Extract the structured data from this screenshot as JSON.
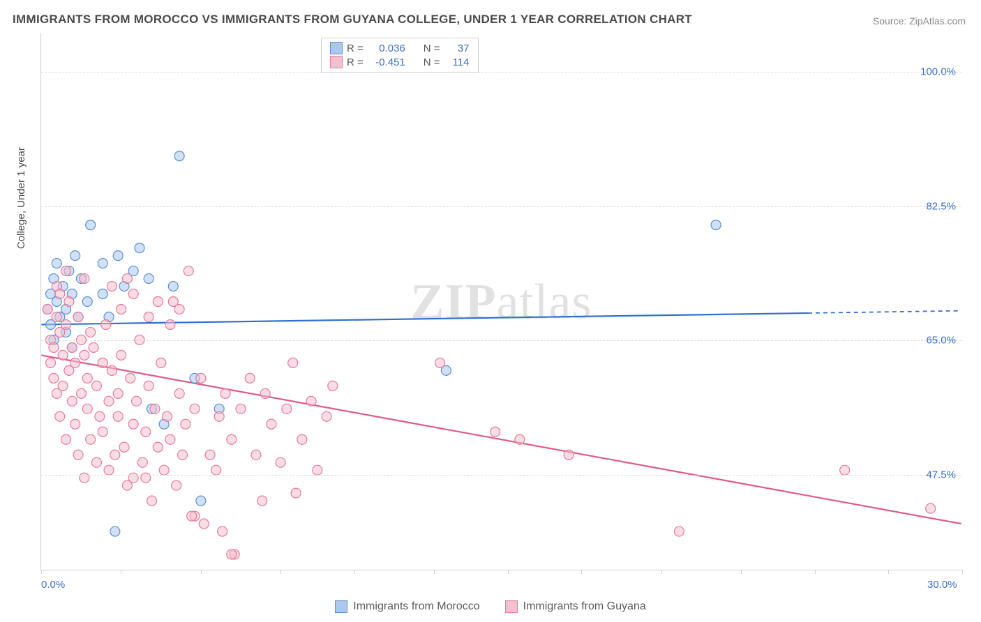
{
  "title": "IMMIGRANTS FROM MOROCCO VS IMMIGRANTS FROM GUYANA COLLEGE, UNDER 1 YEAR CORRELATION CHART",
  "source_label": "Source: ZipAtlas.com",
  "y_axis_title": "College, Under 1 year",
  "watermark": {
    "bold": "ZIP",
    "rest": "atlas"
  },
  "chart": {
    "type": "scatter-correlation",
    "background_color": "#ffffff",
    "grid_color": "#dcdcdc",
    "border_color": "#cfcfcf",
    "label_color": "#3b6fc9",
    "text_color": "#4a4a4a",
    "xlim": [
      0,
      30
    ],
    "ylim": [
      35,
      105
    ],
    "x_ticks": [
      0,
      2.6,
      5.2,
      7.8,
      10.2,
      12.8,
      15.2,
      17.6,
      20.2,
      22.8,
      25.2,
      27.6,
      30
    ],
    "x_tick_labels": {
      "0": "0.0%",
      "30": "30.0%"
    },
    "y_gridlines": [
      47.5,
      65.0,
      82.5,
      100.0
    ],
    "y_tick_labels": [
      "47.5%",
      "65.0%",
      "82.5%",
      "100.0%"
    ],
    "marker_radius": 7,
    "marker_opacity": 0.55,
    "line_width": 2.2,
    "series": [
      {
        "key": "morocco",
        "label": "Immigrants from Morocco",
        "color_fill": "#a9c8ec",
        "color_stroke": "#5a8fd6",
        "line_color": "#2f6fd0",
        "R": "0.036",
        "N": "37",
        "regression": {
          "x1": 0,
          "y1": 67.0,
          "x2": 25.0,
          "y2": 68.5,
          "extend_x": 30,
          "extend_y": 68.8
        },
        "points": [
          [
            0.2,
            69
          ],
          [
            0.3,
            71
          ],
          [
            0.3,
            67
          ],
          [
            0.4,
            73
          ],
          [
            0.4,
            65
          ],
          [
            0.5,
            70
          ],
          [
            0.5,
            75
          ],
          [
            0.6,
            68
          ],
          [
            0.7,
            72
          ],
          [
            0.8,
            66
          ],
          [
            0.8,
            69
          ],
          [
            0.9,
            74
          ],
          [
            1.0,
            71
          ],
          [
            1.0,
            64
          ],
          [
            1.1,
            76
          ],
          [
            1.2,
            68
          ],
          [
            1.3,
            73
          ],
          [
            1.5,
            70
          ],
          [
            1.6,
            80
          ],
          [
            2.0,
            75
          ],
          [
            2.0,
            71
          ],
          [
            2.2,
            68
          ],
          [
            2.5,
            76
          ],
          [
            2.7,
            72
          ],
          [
            3.0,
            74
          ],
          [
            3.2,
            77
          ],
          [
            3.5,
            73
          ],
          [
            3.6,
            56
          ],
          [
            4.0,
            54
          ],
          [
            4.3,
            72
          ],
          [
            4.5,
            89
          ],
          [
            5.0,
            60
          ],
          [
            5.2,
            44
          ],
          [
            2.4,
            40
          ],
          [
            5.8,
            56
          ],
          [
            13.2,
            61
          ],
          [
            22.0,
            80
          ]
        ]
      },
      {
        "key": "guyana",
        "label": "Immigrants from Guyana",
        "color_fill": "#f4c0cd",
        "color_stroke": "#e77a9a",
        "line_color": "#e05a84",
        "R": "-0.451",
        "N": "114",
        "regression": {
          "x1": 0,
          "y1": 63.0,
          "x2": 30,
          "y2": 41.0
        },
        "points": [
          [
            0.2,
            69
          ],
          [
            0.3,
            65
          ],
          [
            0.3,
            62
          ],
          [
            0.4,
            60
          ],
          [
            0.4,
            64
          ],
          [
            0.5,
            68
          ],
          [
            0.5,
            58
          ],
          [
            0.6,
            66
          ],
          [
            0.6,
            55
          ],
          [
            0.7,
            63
          ],
          [
            0.7,
            59
          ],
          [
            0.8,
            67
          ],
          [
            0.8,
            52
          ],
          [
            0.9,
            61
          ],
          [
            0.9,
            70
          ],
          [
            1.0,
            57
          ],
          [
            1.0,
            64
          ],
          [
            1.1,
            62
          ],
          [
            1.1,
            54
          ],
          [
            1.2,
            68
          ],
          [
            1.2,
            50
          ],
          [
            1.3,
            65
          ],
          [
            1.3,
            58
          ],
          [
            1.4,
            63
          ],
          [
            1.4,
            47
          ],
          [
            1.5,
            60
          ],
          [
            1.5,
            56
          ],
          [
            1.6,
            66
          ],
          [
            1.6,
            52
          ],
          [
            1.7,
            64
          ],
          [
            1.8,
            59
          ],
          [
            1.8,
            49
          ],
          [
            1.9,
            55
          ],
          [
            2.0,
            62
          ],
          [
            2.0,
            53
          ],
          [
            2.1,
            67
          ],
          [
            2.2,
            57
          ],
          [
            2.2,
            48
          ],
          [
            2.3,
            61
          ],
          [
            2.4,
            50
          ],
          [
            2.5,
            58
          ],
          [
            2.5,
            55
          ],
          [
            2.6,
            63
          ],
          [
            2.7,
            51
          ],
          [
            2.8,
            46
          ],
          [
            2.9,
            60
          ],
          [
            3.0,
            54
          ],
          [
            3.0,
            47
          ],
          [
            3.1,
            57
          ],
          [
            3.2,
            65
          ],
          [
            3.3,
            49
          ],
          [
            3.4,
            53
          ],
          [
            3.5,
            59
          ],
          [
            3.6,
            44
          ],
          [
            3.7,
            56
          ],
          [
            3.8,
            51
          ],
          [
            3.9,
            62
          ],
          [
            4.0,
            48
          ],
          [
            4.1,
            55
          ],
          [
            4.2,
            52
          ],
          [
            4.3,
            70
          ],
          [
            4.4,
            46
          ],
          [
            4.5,
            58
          ],
          [
            4.6,
            50
          ],
          [
            4.7,
            54
          ],
          [
            4.8,
            74
          ],
          [
            5.0,
            56
          ],
          [
            5.0,
            42
          ],
          [
            5.2,
            60
          ],
          [
            5.3,
            41
          ],
          [
            5.5,
            50
          ],
          [
            5.7,
            48
          ],
          [
            5.8,
            55
          ],
          [
            5.9,
            40
          ],
          [
            6.0,
            58
          ],
          [
            6.2,
            52
          ],
          [
            6.3,
            37
          ],
          [
            6.5,
            56
          ],
          [
            6.8,
            60
          ],
          [
            7.0,
            50
          ],
          [
            7.2,
            44
          ],
          [
            7.3,
            58
          ],
          [
            7.5,
            54
          ],
          [
            7.8,
            49
          ],
          [
            8.0,
            56
          ],
          [
            8.2,
            62
          ],
          [
            8.3,
            45
          ],
          [
            8.5,
            52
          ],
          [
            8.8,
            57
          ],
          [
            9.0,
            48
          ],
          [
            9.3,
            55
          ],
          [
            9.5,
            59
          ],
          [
            2.3,
            72
          ],
          [
            3.0,
            71
          ],
          [
            3.8,
            70
          ],
          [
            4.5,
            69
          ],
          [
            1.4,
            73
          ],
          [
            0.5,
            72
          ],
          [
            0.6,
            71
          ],
          [
            0.8,
            74
          ],
          [
            2.6,
            69
          ],
          [
            3.5,
            68
          ],
          [
            4.2,
            67
          ],
          [
            13.0,
            62
          ],
          [
            14.8,
            53
          ],
          [
            15.6,
            52
          ],
          [
            17.2,
            50
          ],
          [
            20.8,
            40
          ],
          [
            26.2,
            48
          ],
          [
            29.0,
            43
          ],
          [
            6.2,
            37
          ],
          [
            3.4,
            47
          ],
          [
            4.9,
            42
          ],
          [
            2.8,
            73
          ]
        ]
      }
    ]
  }
}
